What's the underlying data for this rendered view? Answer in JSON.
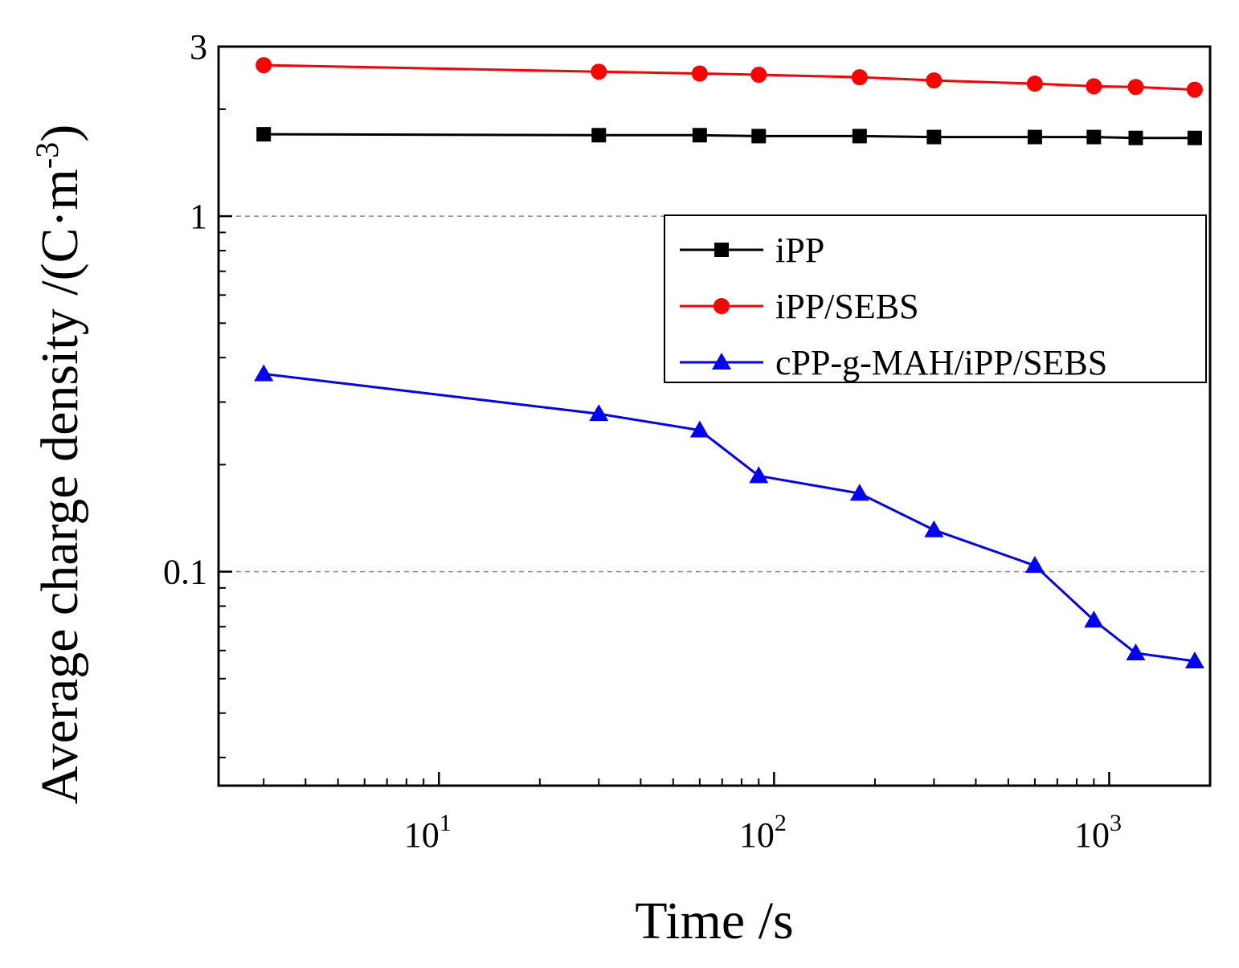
{
  "chart_data": {
    "type": "line",
    "xscale": "log",
    "yscale": "log",
    "xlim": [
      2.2,
      2000
    ],
    "ylim": [
      0.025,
      3
    ],
    "xlabel": "Time /s",
    "ylabel_main": "Average charge density /(C·m",
    "ylabel_sup": "-3",
    "ylabel_end": ")",
    "x_ticks": [
      {
        "value": 10,
        "base": "10",
        "exp": "1"
      },
      {
        "value": 100,
        "base": "10",
        "exp": "2"
      },
      {
        "value": 1000,
        "base": "10",
        "exp": "3"
      }
    ],
    "y_ticks": [
      {
        "value": 3,
        "label": "3"
      },
      {
        "value": 1,
        "label": "1"
      },
      {
        "value": 0.1,
        "label": "0.1"
      }
    ],
    "gridlines_y": [
      1,
      0.1
    ],
    "legend_position": "top-right",
    "series": [
      {
        "name": "iPP",
        "color": "#000000",
        "marker": "square",
        "x": [
          3,
          30,
          60,
          90,
          180,
          300,
          600,
          900,
          1200,
          1800
        ],
        "y": [
          1.7,
          1.69,
          1.69,
          1.68,
          1.68,
          1.67,
          1.67,
          1.67,
          1.66,
          1.66
        ]
      },
      {
        "name": "iPP/SEBS",
        "color": "#ff0000",
        "marker": "circle",
        "x": [
          3,
          30,
          60,
          90,
          180,
          300,
          600,
          900,
          1200,
          1800
        ],
        "y": [
          2.66,
          2.55,
          2.52,
          2.5,
          2.46,
          2.41,
          2.36,
          2.32,
          2.31,
          2.27
        ]
      },
      {
        "name": "cPP-g-MAH/iPP/SEBS",
        "color": "#0000ff",
        "marker": "triangle",
        "x": [
          3,
          30,
          60,
          90,
          180,
          300,
          600,
          900,
          1200,
          1800
        ],
        "y": [
          0.36,
          0.278,
          0.25,
          0.186,
          0.166,
          0.131,
          0.104,
          0.073,
          0.059,
          0.056
        ]
      }
    ]
  }
}
